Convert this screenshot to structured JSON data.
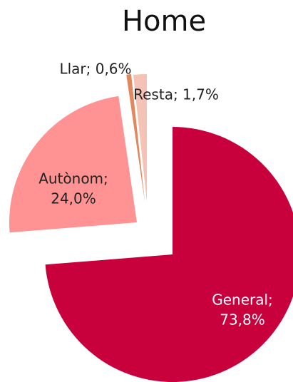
{
  "chart_data": {
    "type": "pie",
    "title": "Home",
    "values": [
      73.8,
      24.0,
      0.6,
      1.7
    ],
    "value_labels": [
      [
        "General;",
        "73,8%"
      ],
      [
        "Autònom;",
        "24,0%"
      ],
      [
        "Llar; 0,6%"
      ],
      [
        "Resta; 1,7%"
      ]
    ],
    "colors": [
      "#c8003c",
      "#ff9292",
      "#e2875e",
      "#f5c3b5"
    ]
  }
}
